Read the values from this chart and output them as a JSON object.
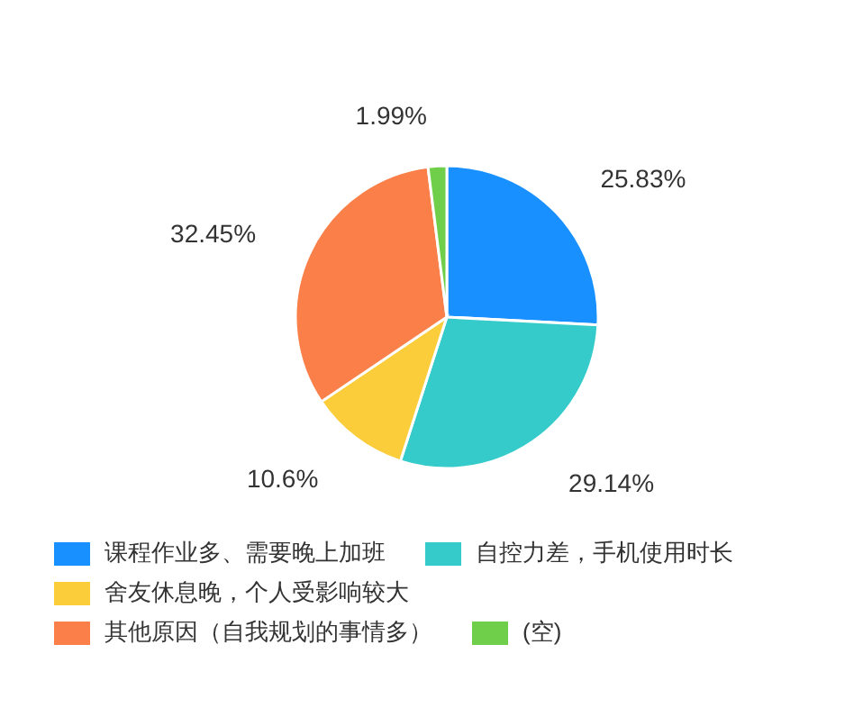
{
  "chart_data": {
    "type": "pie",
    "categories": [
      "课程作业多、需要晚上加班",
      "自控力差，手机使用时长",
      "舍友休息晚，个人受影响较大",
      "其他原因（自我规划的事情多）",
      "(空)"
    ],
    "values": [
      25.83,
      29.14,
      10.6,
      32.45,
      1.99
    ],
    "value_labels": [
      "25.83%",
      "29.14%",
      "10.6%",
      "32.45%",
      "1.99%"
    ],
    "colors": [
      "#1890ff",
      "#36cbcb",
      "#fbcd3b",
      "#fb7f49",
      "#6fcf4b"
    ],
    "legend": "bottom"
  }
}
